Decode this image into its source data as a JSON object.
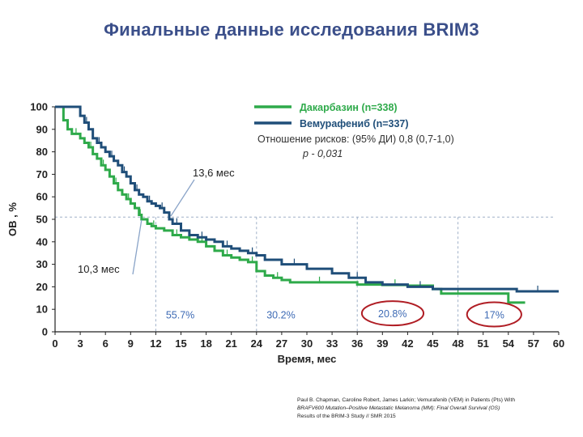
{
  "title": "Финальные данные исследования BRIM3",
  "colors": {
    "title": "#3b4f8a",
    "vemurafenib": "#1f4e79",
    "dacarbazine": "#2eaa4a",
    "annotation_circle": "#b01d24",
    "reference_line": "#9fb0c8",
    "annotation_text": "#3e6bb5"
  },
  "chart_data": {
    "type": "line",
    "xlabel": "Время, мес",
    "ylabel": "ОВ , %",
    "xlim": [
      0,
      60
    ],
    "ylim": [
      0,
      100
    ],
    "xticks": [
      0,
      3,
      6,
      9,
      12,
      15,
      18,
      21,
      24,
      27,
      30,
      33,
      36,
      39,
      42,
      45,
      48,
      51,
      54,
      57,
      60
    ],
    "yticks": [
      0,
      10,
      20,
      30,
      40,
      50,
      60,
      70,
      80,
      90,
      100
    ],
    "legend_position": "top-right",
    "series": [
      {
        "name": "Дакарбазин (n=338)",
        "color": "#2eaa4a",
        "x": [
          0,
          1,
          1.5,
          2,
          3,
          3.5,
          4,
          4.5,
          5,
          5.5,
          6,
          6.5,
          7,
          7.5,
          8,
          8.5,
          9,
          9.5,
          10,
          10.3,
          11,
          11.5,
          12,
          13,
          14,
          15,
          16,
          17,
          18,
          19,
          20,
          21,
          22,
          23,
          24,
          25,
          26,
          27,
          28,
          30,
          33,
          36,
          39,
          42,
          45,
          46,
          50,
          54,
          56
        ],
        "y": [
          100,
          94,
          90,
          88,
          86,
          84,
          82,
          79,
          77,
          74,
          72,
          69,
          66,
          63,
          61,
          59,
          57,
          55,
          52,
          50,
          48,
          47,
          46,
          45,
          43,
          42,
          41,
          40,
          38,
          36,
          34,
          33,
          32,
          31,
          27,
          25,
          24,
          23,
          22,
          22,
          22,
          21,
          20.8,
          20.5,
          19,
          17,
          17,
          13,
          13
        ]
      },
      {
        "name": "Вемурафениб (n=337)",
        "color": "#1f4e79",
        "x": [
          0,
          1,
          3,
          3.5,
          4,
          4.5,
          5,
          5.5,
          6,
          6.5,
          7,
          7.5,
          8,
          8.5,
          9,
          9.5,
          10,
          10.5,
          11,
          11.5,
          12,
          12.5,
          13,
          13.6,
          14,
          15,
          16,
          17,
          18,
          19,
          20,
          21,
          22,
          23,
          24,
          25,
          27,
          30,
          33,
          35,
          37,
          39,
          42,
          45,
          50,
          55,
          60
        ],
        "y": [
          100,
          100,
          96,
          93,
          90,
          86,
          84,
          82,
          80,
          78,
          76,
          74,
          71,
          69,
          66,
          63,
          61,
          60,
          58,
          57,
          56,
          55,
          53,
          50,
          48,
          45,
          43,
          42,
          41,
          40,
          38,
          37,
          36,
          35,
          34,
          32,
          30,
          28,
          26,
          24,
          22,
          21,
          20,
          19,
          19,
          18,
          18
        ]
      }
    ],
    "median_annotations": [
      {
        "label": "13,6 мес",
        "x": 13.6,
        "y": 50,
        "series": "Вемурафениб (n=337)"
      },
      {
        "label": "10,3 мес",
        "x": 10.3,
        "y": 50,
        "series": "Дакарбазин (n=338)"
      }
    ],
    "reference_lines": [
      {
        "orientation": "horizontal",
        "y": 51
      },
      {
        "orientation": "vertical",
        "x": 12
      },
      {
        "orientation": "vertical",
        "x": 24
      },
      {
        "orientation": "vertical",
        "x": 36
      },
      {
        "orientation": "vertical",
        "x": 48
      }
    ],
    "percent_labels": [
      {
        "text": "55.7%",
        "x": 13.2,
        "y": 7,
        "circled": false
      },
      {
        "text": "30.2%",
        "x": 25.2,
        "y": 7,
        "circled": false
      },
      {
        "text": "20.8%",
        "x": 37.6,
        "y": 7.5,
        "circled": true
      },
      {
        "text": "17%",
        "x": 50.0,
        "y": 7,
        "circled": true
      }
    ],
    "hazard_ratio": {
      "line1": "Отношение рисков: (95% ДИ)  0,8 (0,7-1,0)",
      "line2": "р  - 0,031"
    }
  },
  "citation": {
    "line1": "Paul B. Chapman, Caroline Robert, James Larkin; Vemurafenib (VEM) in Patients (Pts) With",
    "line2": "BRAFV600 Mutation–Positive Metastatic Melanoma (MM): Final Overall Survival (OS)",
    "line3": "Results of the BRIM-3 Study // SMR 2015"
  }
}
